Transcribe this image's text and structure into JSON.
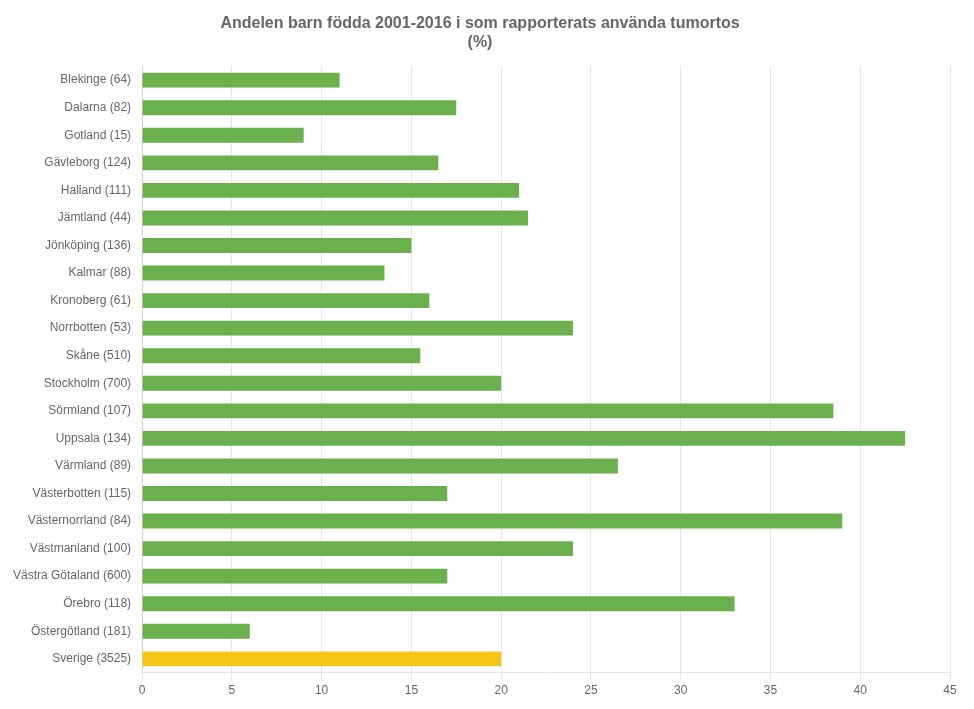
{
  "chart_data": {
    "type": "bar",
    "orientation": "horizontal",
    "title": "Andelen barn födda 2001-2016 i som rapporterats använda tumortos\n(%)",
    "categories": [
      "Blekinge (64)",
      "Dalarna (82)",
      "Gotland (15)",
      "Gävleborg (124)",
      "Halland (111)",
      "Jämtland (44)",
      "Jönköping (136)",
      "Kalmar (88)",
      "Kronoberg (61)",
      "Norrbotten (53)",
      "Skåne (510)",
      "Stockholm (700)",
      "Sörmland (107)",
      "Uppsala (134)",
      "Värmland (89)",
      "Västerbotten (115)",
      "Västernorrland (84)",
      "Västmanland (100)",
      "Västra Götaland (600)",
      "Örebro (118)",
      "Östergötland (181)",
      "Sverige (3525)"
    ],
    "values": [
      11.0,
      17.5,
      9.0,
      16.5,
      21.0,
      21.5,
      15.0,
      13.5,
      16.0,
      24.0,
      15.5,
      20.0,
      38.5,
      42.5,
      26.5,
      17.0,
      39.0,
      24.0,
      17.0,
      33.0,
      6.0,
      20.0
    ],
    "colors": [
      "#6ab04c",
      "#6ab04c",
      "#6ab04c",
      "#6ab04c",
      "#6ab04c",
      "#6ab04c",
      "#6ab04c",
      "#6ab04c",
      "#6ab04c",
      "#6ab04c",
      "#6ab04c",
      "#6ab04c",
      "#6ab04c",
      "#6ab04c",
      "#6ab04c",
      "#6ab04c",
      "#6ab04c",
      "#6ab04c",
      "#6ab04c",
      "#6ab04c",
      "#6ab04c",
      "#f5c518"
    ],
    "xlim": [
      0,
      45
    ],
    "xticks": [
      0,
      5,
      10,
      15,
      20,
      25,
      30,
      35,
      40,
      45
    ],
    "grid": true
  }
}
